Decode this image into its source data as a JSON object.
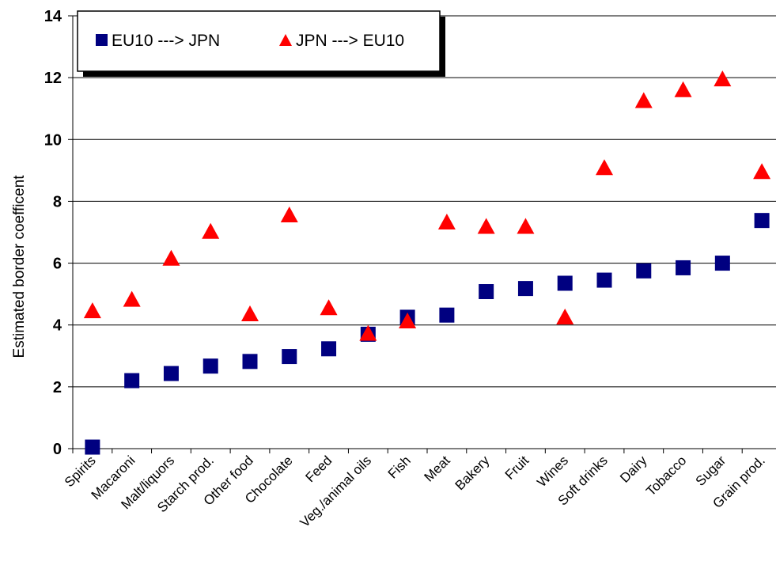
{
  "chart_data": {
    "type": "scatter",
    "title": "",
    "xlabel": "",
    "ylabel": "Estimated border coefficent",
    "ylim": [
      0,
      14
    ],
    "yticks": [
      0,
      2,
      4,
      6,
      8,
      10,
      12,
      14
    ],
    "grid": true,
    "legend_position": "top-left",
    "categories": [
      "Spirits",
      "Macaroni",
      "Malt/liquors",
      "Starch prod.",
      "Other food",
      "Chocolate",
      "Feed",
      "Veg./animal oils",
      "Fish",
      "Meat",
      "Bakery",
      "Fruit",
      "Wines",
      "Soft drinks",
      "Dairy",
      "Tobacco",
      "Sugar",
      "Grain prod."
    ],
    "series": [
      {
        "name": "EU10 ---> JPN",
        "marker": "square",
        "color": "#000080",
        "values": [
          0.05,
          2.2,
          2.43,
          2.67,
          2.82,
          2.98,
          3.23,
          3.7,
          4.25,
          4.32,
          5.08,
          5.18,
          5.35,
          5.45,
          5.75,
          5.85,
          6.0,
          7.38
        ]
      },
      {
        "name": "JPN ---> EU10",
        "marker": "triangle",
        "color": "#ff0000",
        "values": [
          4.45,
          4.82,
          6.15,
          7.02,
          4.35,
          7.55,
          4.55,
          3.72,
          4.12,
          7.32,
          7.18,
          7.18,
          4.25,
          9.08,
          11.25,
          11.6,
          11.95,
          8.95
        ]
      }
    ]
  }
}
